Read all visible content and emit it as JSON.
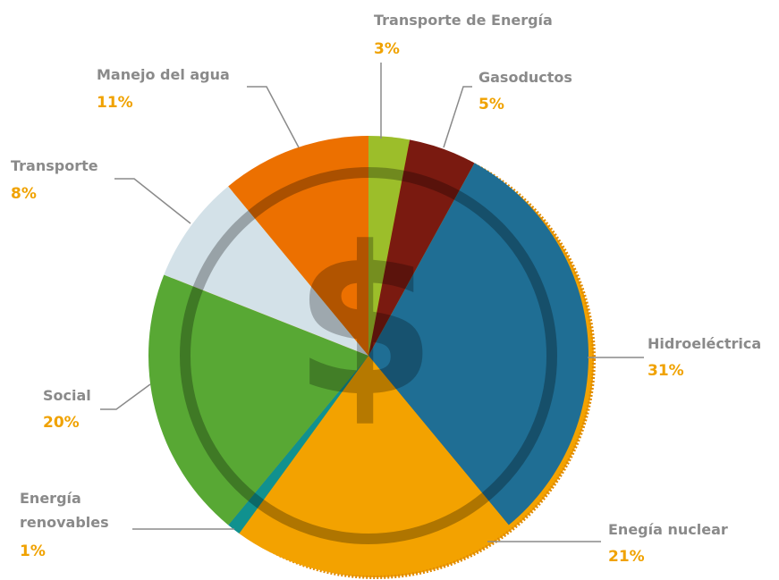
{
  "chart_data": {
    "type": "pie",
    "categories": [
      "Transporte de Energía",
      "Gasoductos",
      "Hidroeléctrica",
      "Enegía nuclear",
      "Energía renovables",
      "Social",
      "Transporte",
      "Manejo del agua"
    ],
    "values": [
      3,
      5,
      31,
      21,
      1,
      20,
      8,
      11
    ],
    "value_labels": [
      "3%",
      "5%",
      "31%",
      "21%",
      "1%",
      "20%",
      "8%",
      "11%"
    ],
    "colors": [
      "#9cbe2a",
      "#7a1a10",
      "#1f6e94",
      "#f3a200",
      "#10918f",
      "#58a834",
      "#d3e1e8",
      "#ec7000"
    ]
  }
}
